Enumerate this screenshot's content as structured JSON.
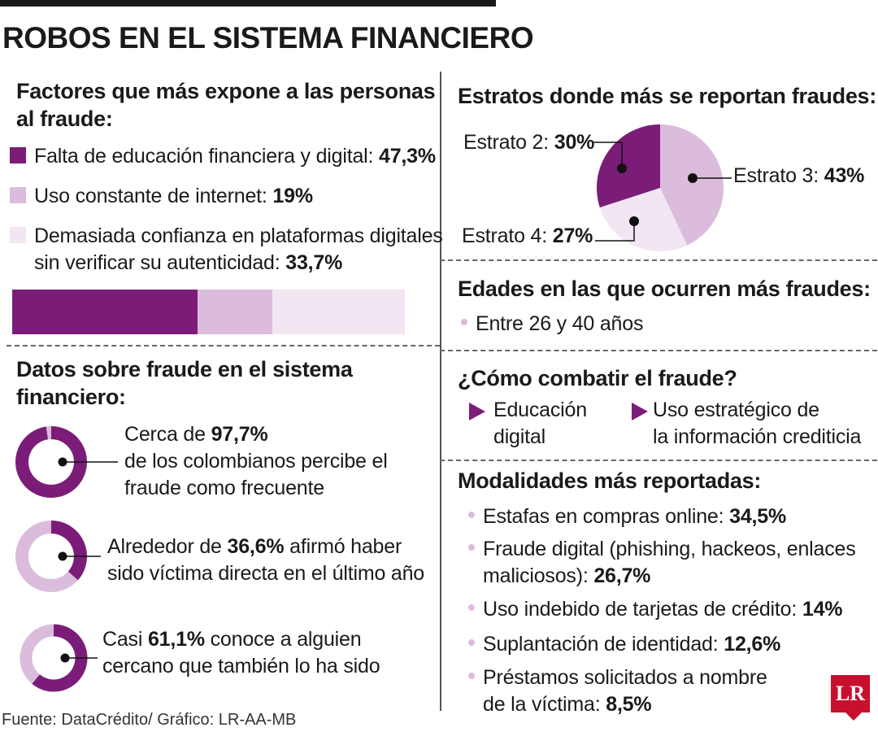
{
  "title": "ROBOS EN EL SISTEMA FINANCIERO",
  "source": "Fuente: DataCrédito/ Gráfico: LR-AA-MB",
  "logo": "LR",
  "colors": {
    "dark_purple": "#7b1d78",
    "mid_purple": "#dcbcdc",
    "light_purple": "#f2e6f2",
    "logo_red": "#c8102e"
  },
  "factors": {
    "heading_line1": "Factores que más expone a las personas",
    "heading_line2": "al fraude:",
    "items": [
      {
        "label": "Falta de educación financiera y digital: ",
        "value": "47,3%"
      },
      {
        "label": "Uso constante de internet: ",
        "value": "19%"
      },
      {
        "label_line1": "Demasiada confianza en plataformas digitales",
        "label_line2": "sin verificar su autenticidad: ",
        "value": "33,7%"
      }
    ]
  },
  "datos": {
    "heading_line1": "Datos sobre fraude en el sistema",
    "heading_line2": "financiero:",
    "items": [
      {
        "pre": "Cerca de ",
        "value": "97,7%",
        "line2": "de los colombianos percibe el",
        "line3": "fraude como frecuente"
      },
      {
        "pre": "Alrededor de ",
        "value": "36,6%",
        "post": " afirmó haber",
        "line2": "sido víctima directa en el último año"
      },
      {
        "pre": "Casi ",
        "value": "61,1%",
        "post": " conoce a alguien",
        "line2": "cercano que también lo ha sido"
      }
    ]
  },
  "estratos": {
    "heading": "Estratos donde más se reportan fraudes:",
    "labels": [
      {
        "name": "Estrato 2: ",
        "value": "30%"
      },
      {
        "name": "Estrato 3: ",
        "value": "43%"
      },
      {
        "name": "Estrato 4: ",
        "value": "27%"
      }
    ]
  },
  "edades": {
    "heading": "Edades en las que ocurren más fraudes:",
    "item": "Entre 26 y 40 años"
  },
  "combatir": {
    "heading": "¿Cómo combatir el fraude?",
    "items": [
      {
        "line1": "Educación",
        "line2": "digital"
      },
      {
        "line1": "Uso estratégico de",
        "line2": "la información crediticia"
      }
    ]
  },
  "modalidades": {
    "heading": "Modalidades más reportadas:",
    "items": [
      {
        "label": "Estafas en compras online: ",
        "value": "34,5%"
      },
      {
        "label_line1": "Fraude digital (phishing, hackeos, enlaces",
        "label_line2": "maliciosos): ",
        "value": "26,7%"
      },
      {
        "label": "Uso indebido de tarjetas de crédito: ",
        "value": "14%"
      },
      {
        "label": "Suplantación de identidad: ",
        "value": "12,6%"
      },
      {
        "label_line1": "Préstamos solicitados a nombre",
        "label_line2": "de la víctima: ",
        "value": "8,5%"
      }
    ]
  },
  "chart_data": [
    {
      "type": "bar",
      "categories": [
        "Falta de educación financiera y digital",
        "Uso constante de internet",
        "Demasiada confianza en plataformas digitales sin verificar su autenticidad"
      ],
      "values": [
        47.3,
        19,
        33.7
      ]
    },
    {
      "type": "pie",
      "categories": [
        "Estrato 2",
        "Estrato 3",
        "Estrato 4"
      ],
      "values": [
        30,
        43,
        27
      ]
    },
    {
      "type": "pie",
      "values": [
        97.7
      ]
    },
    {
      "type": "pie",
      "values": [
        36.6
      ]
    },
    {
      "type": "pie",
      "values": [
        61.1
      ]
    }
  ]
}
